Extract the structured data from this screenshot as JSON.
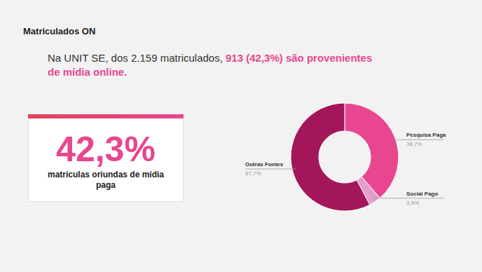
{
  "slide": {
    "title": "Matriculados ON",
    "text": "Na UNIT SE, dos 2.159 matriculados, ",
    "text_highlight": "913 (42,3%) são provenientes de mídia online.",
    "card": {
      "headline": "42,3%",
      "caption": "matrículas oriundas de mídia paga"
    }
  },
  "chart_data": {
    "type": "pie",
    "categories": [
      "Pesquisa Paga",
      "Social Pago",
      "Outras Fontes"
    ],
    "values": [
      38.7,
      3.6,
      57.7
    ],
    "value_labels": [
      "38,7%",
      "3,6%",
      "57,7%"
    ],
    "colors": [
      "#E8468F",
      "#E3A0CC",
      "#A3175A"
    ],
    "data_labels": true
  }
}
